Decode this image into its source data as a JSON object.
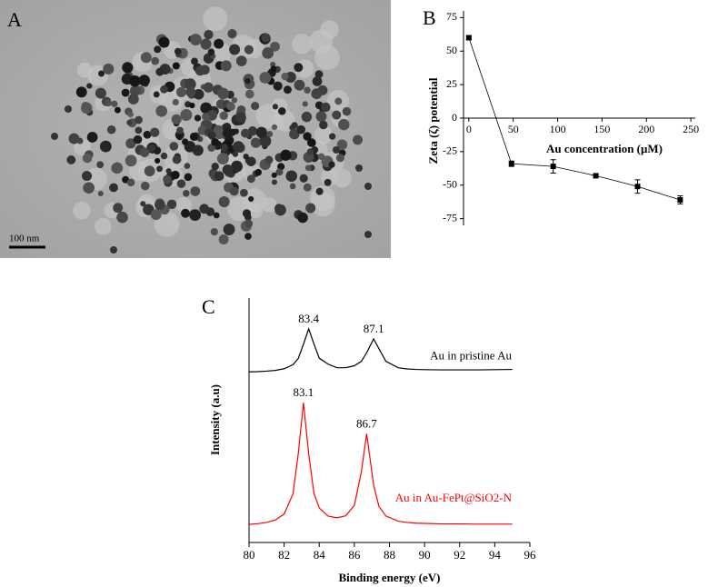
{
  "panel_a": {
    "label": "A",
    "scale_bar": "100 nm"
  },
  "chart_data": [
    {
      "type": "line",
      "panel": "B",
      "x_label": "Au concentration (μM)",
      "y_label": "Zeta (ζ) potential",
      "x": [
        0,
        48,
        95,
        143,
        190,
        238
      ],
      "series": [
        {
          "color": "#000000",
          "marker": "square",
          "values": [
            60,
            -34,
            -36,
            -43,
            -51,
            -61
          ],
          "errors": [
            1.5,
            2,
            5,
            1,
            5,
            3
          ]
        }
      ],
      "xlim": [
        -6,
        255
      ],
      "ylim": [
        -80,
        80
      ],
      "xticks": [
        0,
        50,
        100,
        150,
        200,
        250
      ],
      "yticks": [
        -75,
        -50,
        -25,
        0,
        25,
        50,
        75
      ]
    },
    {
      "type": "line",
      "panel": "C",
      "x_label": "Binding energy (eV)",
      "y_label": "Intensity (a.u)",
      "x": [
        80,
        80.5,
        81,
        81.5,
        82,
        82.5,
        82.8,
        83.1,
        83.4,
        83.7,
        84,
        84.5,
        85,
        85.5,
        86,
        86.4,
        86.7,
        87.1,
        87.4,
        87.8,
        88.5,
        89,
        89.5,
        90,
        91,
        92,
        93,
        94,
        95
      ],
      "series": [
        {
          "name": "Au in pristine Au",
          "color": "#000000",
          "values": [
            69.8,
            69.9,
            70.1,
            70.4,
            71.1,
            72.7,
            75.2,
            81.1,
            87.4,
            81.2,
            75.4,
            73.0,
            71.5,
            71.5,
            72.3,
            74.1,
            77.6,
            83.3,
            79.3,
            74.1,
            71.5,
            71.0,
            70.8,
            70.7,
            70.6,
            70.6,
            70.6,
            70.7,
            70.8
          ]
        },
        {
          "name": "Au in Au-FePt@SiO2-N",
          "color": "#ff0000",
          "values": [
            7.4,
            7.7,
            8.2,
            9.2,
            11.6,
            19.8,
            36.0,
            57.2,
            36.2,
            20.1,
            14.1,
            10.8,
            10.1,
            10.9,
            15.1,
            28.9,
            44.5,
            23.4,
            14.8,
            10.8,
            8.7,
            8.2,
            7.9,
            7.8,
            7.6,
            7.6,
            7.5,
            7.5,
            7.5
          ]
        }
      ],
      "annotations": [
        {
          "text": "83.4",
          "x": 83.4,
          "y": 87.4
        },
        {
          "text": "87.1",
          "x": 87.1,
          "y": 83.3
        },
        {
          "text": "83.1",
          "x": 83.1,
          "y": 57.2
        },
        {
          "text": "86.7",
          "x": 86.7,
          "y": 44.5
        }
      ],
      "xlim": [
        80,
        96
      ],
      "ylim": [
        0,
        100
      ],
      "xticks": [
        80,
        82,
        84,
        86,
        88,
        90,
        92,
        94,
        96
      ]
    }
  ]
}
